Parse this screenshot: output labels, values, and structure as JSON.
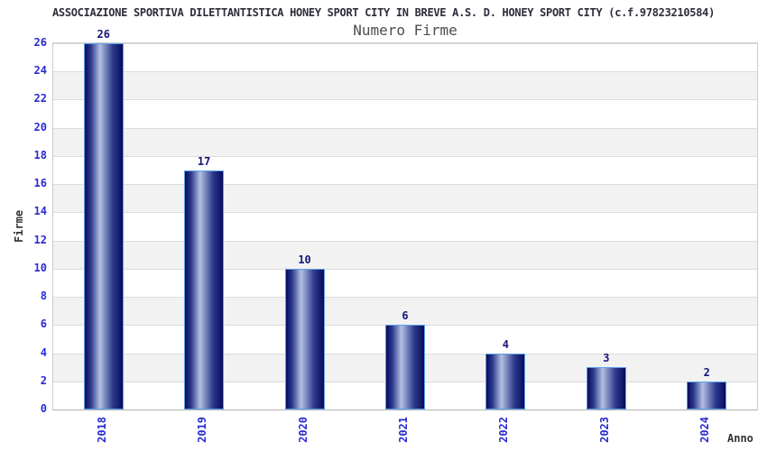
{
  "chart_data": {
    "type": "bar",
    "title": "ASSOCIAZIONE SPORTIVA DILETTANTISTICA HONEY SPORT CITY IN BREVE A.S. D. HONEY SPORT CITY (c.f.97823210584)",
    "subtitle": "Numero Firme",
    "xlabel": "Anno",
    "ylabel": "Firme",
    "categories": [
      "2018",
      "2019",
      "2020",
      "2021",
      "2022",
      "2023",
      "2024"
    ],
    "values": [
      26,
      17,
      10,
      6,
      4,
      3,
      2
    ],
    "ylim": [
      0,
      26
    ],
    "yticks": [
      0,
      2,
      4,
      6,
      8,
      10,
      12,
      14,
      16,
      18,
      20,
      22,
      24,
      26
    ],
    "grid": true,
    "legend": "none",
    "bands": "alternating gray/white every 2 units",
    "colors": {
      "bar_dark": "#0a0a5c",
      "bar_mid": "#2c3a8c",
      "bar_light": "#b3bfe2",
      "bar_edge": "#5ca0e8",
      "tick_blue": "#2a2ad2",
      "value_navy": "#17177d",
      "band_gray": "#f2f2f2",
      "grid": "#dcdcdc",
      "title_color": "#2d2d3a",
      "axis_label": "#333333"
    }
  }
}
